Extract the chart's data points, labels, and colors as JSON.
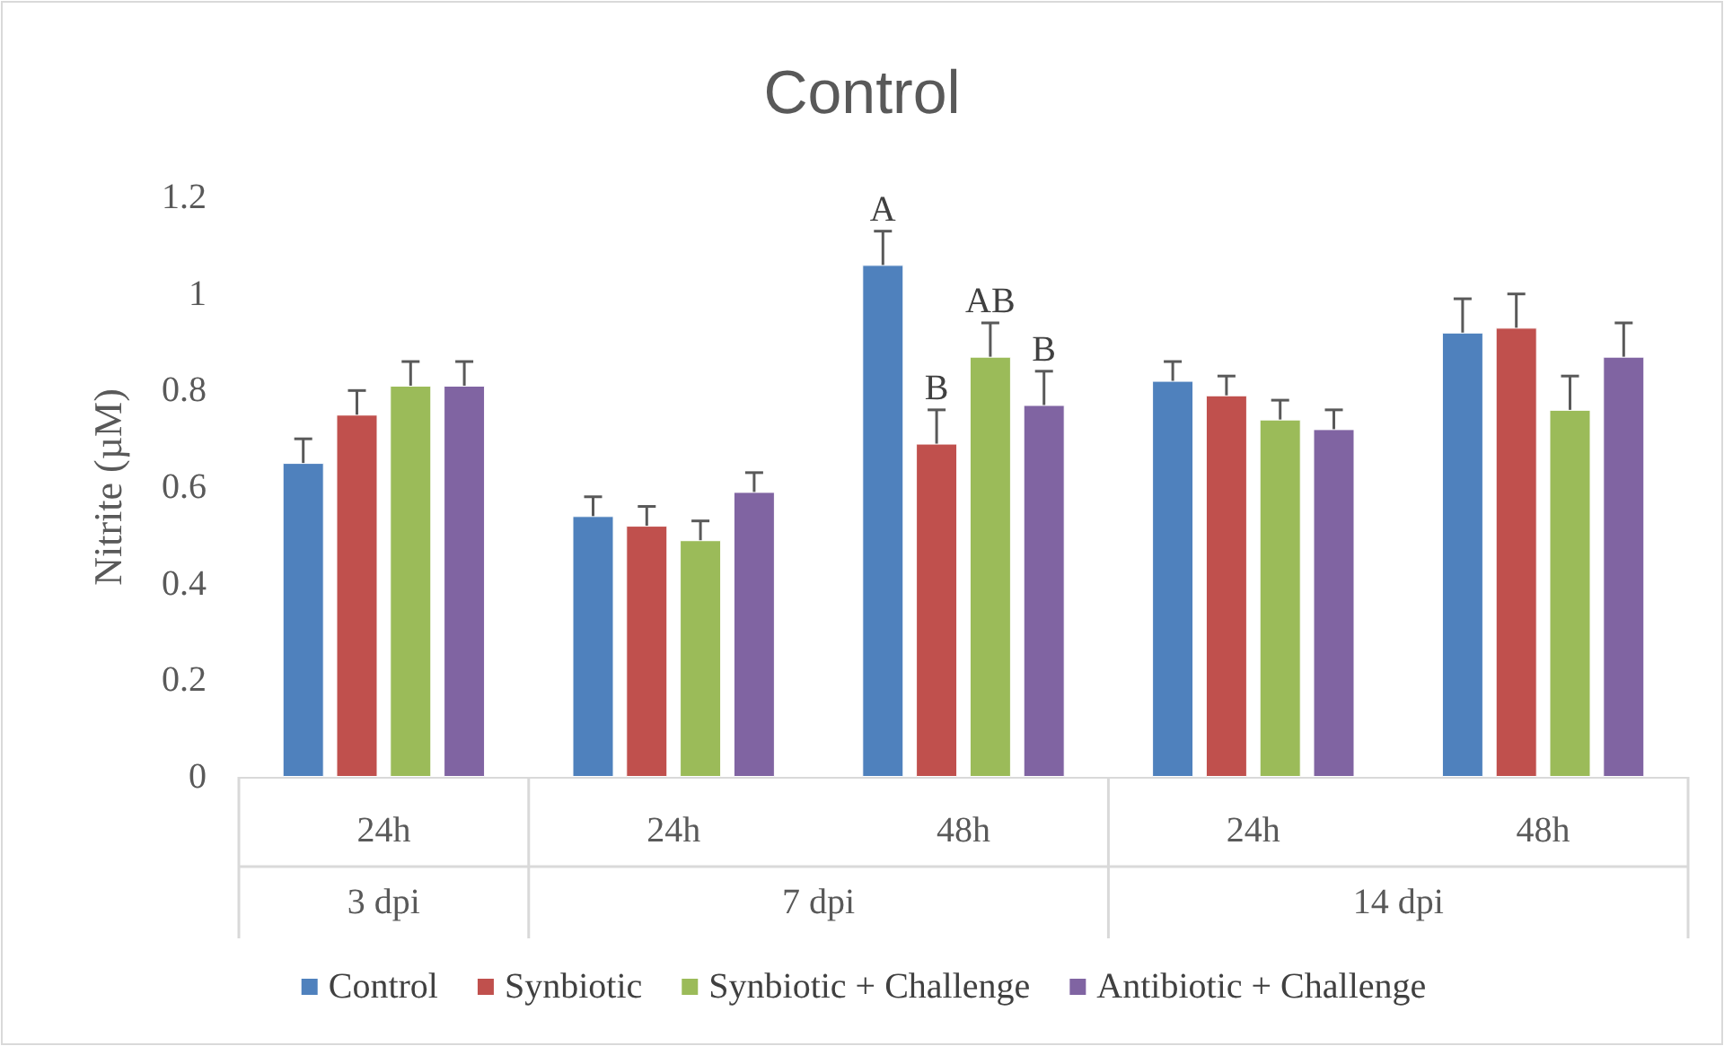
{
  "chart_data": {
    "type": "bar",
    "title": "Control",
    "ylabel": "Nitrite (µM)",
    "categories": [
      "24h",
      "24h",
      "48h",
      "24h",
      "48h"
    ],
    "series": [
      {
        "name": "Control",
        "color": "#4f81bd",
        "values": [
          0.65,
          0.54,
          1.06,
          0.82,
          0.92
        ],
        "errors": [
          0.05,
          0.04,
          0.07,
          0.04,
          0.07
        ],
        "value_labels": [
          null,
          null,
          "A",
          null,
          null
        ]
      },
      {
        "name": "Synbiotic",
        "color": "#c0504d",
        "values": [
          0.75,
          0.52,
          0.69,
          0.79,
          0.93
        ],
        "errors": [
          0.05,
          0.04,
          0.07,
          0.04,
          0.07
        ],
        "value_labels": [
          null,
          null,
          "B",
          null,
          null
        ]
      },
      {
        "name": "Synbiotic + Challenge",
        "color": "#9bbb59",
        "values": [
          0.81,
          0.49,
          0.87,
          0.74,
          0.76
        ],
        "errors": [
          0.05,
          0.04,
          0.07,
          0.04,
          0.07
        ],
        "value_labels": [
          null,
          null,
          "AB",
          null,
          null
        ]
      },
      {
        "name": "Antibiotic + Challenge",
        "color": "#8064a2",
        "values": [
          0.81,
          0.59,
          0.77,
          0.72,
          0.87
        ],
        "errors": [
          0.05,
          0.04,
          0.07,
          0.04,
          0.07
        ],
        "value_labels": [
          null,
          null,
          "B",
          null,
          null
        ]
      }
    ],
    "annotations": [
      "3 dpi",
      "7 dpi",
      "14 dpi"
    ],
    "ylim": [
      0,
      1.2
    ],
    "yticks": [
      0,
      0.2,
      0.4,
      0.6,
      0.8,
      1,
      1.2
    ],
    "grid": false,
    "legend": "bottom"
  }
}
